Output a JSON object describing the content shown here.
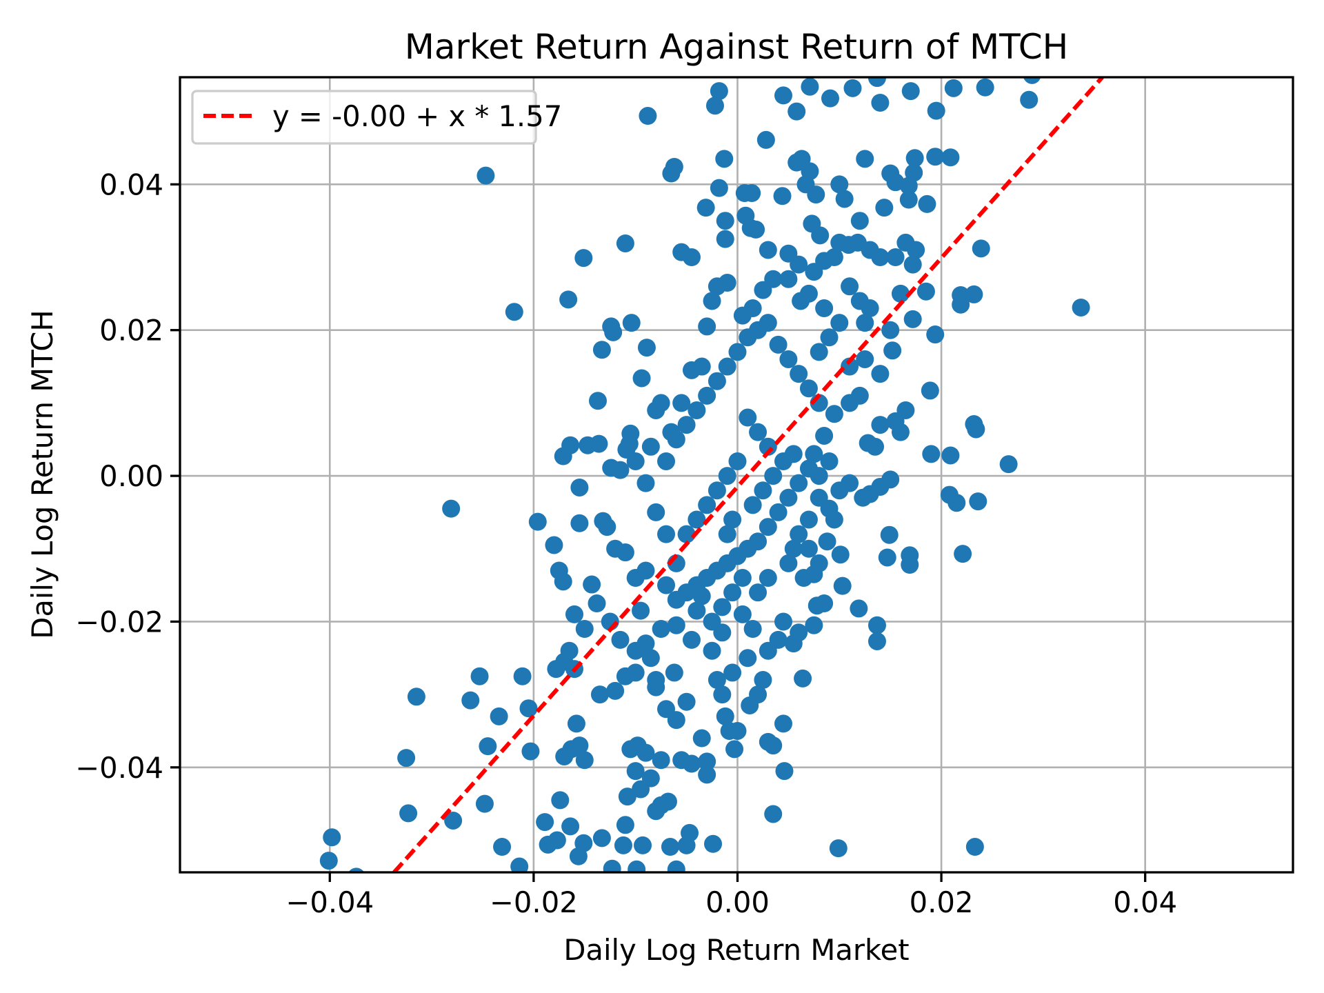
{
  "chart_data": {
    "type": "scatter",
    "title": "Market Return Against Return of MTCH",
    "xlabel": "Daily Log Return Market",
    "ylabel": "Daily Log Return MTCH",
    "xlim": [
      -0.0547,
      0.0545
    ],
    "ylim": [
      -0.0544,
      0.0547
    ],
    "xticks": [
      -0.04,
      -0.02,
      0.0,
      0.02,
      0.04
    ],
    "xtick_labels": [
      "−0.04",
      "−0.02",
      "0.00",
      "0.02",
      "0.04"
    ],
    "yticks": [
      -0.04,
      -0.02,
      0.0,
      0.02,
      0.04
    ],
    "ytick_labels": [
      "−0.04",
      "−0.02",
      "0.00",
      "0.02",
      "0.04"
    ],
    "grid": true,
    "legend_position": "top-left",
    "point_color": "#1f77b4",
    "line_color": "#ff0000",
    "fit_line": {
      "label": "y = -0.00 + x * 1.57",
      "intercept": -0.0015,
      "slope": 1.57,
      "style": "dashed"
    },
    "points": [
      [
        -0.0247,
        0.0412
      ],
      [
        -0.0088,
        0.0494
      ],
      [
        -0.0018,
        0.0528
      ],
      [
        -0.0022,
        0.0508
      ],
      [
        0.0337,
        0.0231
      ],
      [
        0.0266,
        0.0016
      ],
      [
        -0.0219,
        0.0225
      ],
      [
        -0.0281,
        -0.0045
      ],
      [
        -0.0196,
        -0.0063
      ],
      [
        -0.0325,
        -0.0387
      ],
      [
        -0.0315,
        -0.0303
      ],
      [
        -0.0323,
        -0.0463
      ],
      [
        -0.0398,
        -0.0496
      ],
      [
        -0.0401,
        -0.0528
      ],
      [
        -0.0374,
        -0.055
      ],
      [
        -0.0279,
        -0.0473
      ],
      [
        -0.0248,
        -0.045
      ],
      [
        -0.0245,
        -0.0371
      ],
      [
        -0.0262,
        -0.0308
      ],
      [
        -0.0234,
        -0.033
      ],
      [
        -0.0253,
        -0.0275
      ],
      [
        -0.0211,
        -0.0275
      ],
      [
        -0.0205,
        -0.0319
      ],
      [
        -0.0203,
        -0.0378
      ],
      [
        -0.0231,
        -0.0509
      ],
      [
        -0.0214,
        -0.0536
      ],
      [
        0.0099,
        -0.0511
      ],
      [
        0.0233,
        -0.0509
      ],
      [
        0.0236,
        -0.0035
      ],
      [
        0.0215,
        -0.0037
      ],
      [
        0.0208,
        -0.0026
      ],
      [
        0.0221,
        -0.0107
      ],
      [
        0.0234,
        0.0064
      ],
      [
        0.0232,
        0.0071
      ],
      [
        0.019,
        0.003
      ],
      [
        0.0209,
        0.0028
      ],
      [
        0.0189,
        0.0117
      ],
      [
        0.0194,
        0.0194
      ],
      [
        0.0219,
        0.0248
      ],
      [
        0.0219,
        0.0235
      ],
      [
        0.0232,
        0.0249
      ],
      [
        0.0239,
        0.0312
      ],
      [
        0.0185,
        0.0253
      ],
      [
        0.0186,
        0.0373
      ],
      [
        0.0194,
        0.0438
      ],
      [
        0.0209,
        0.0437
      ],
      [
        0.0195,
        0.0501
      ],
      [
        0.0212,
        0.0532
      ],
      [
        0.0243,
        0.0533
      ],
      [
        0.0286,
        0.0516
      ],
      [
        0.0289,
        0.055
      ],
      [
        0.017,
        0.0528
      ],
      [
        0.0137,
        0.0546
      ],
      [
        0.0113,
        0.0532
      ],
      [
        0.0091,
        0.0518
      ],
      [
        0.0071,
        0.0534
      ],
      [
        0.0058,
        0.05
      ],
      [
        0.0045,
        0.0522
      ],
      [
        0.014,
        0.0512
      ],
      [
        0.0028,
        0.0461
      ],
      [
        0.0174,
        0.0436
      ],
      [
        0.0173,
        0.0416
      ],
      [
        0.015,
        0.0415
      ],
      [
        0.0155,
        0.0403
      ],
      [
        0.0168,
        0.0398
      ],
      [
        0.0144,
        0.0368
      ],
      [
        0.0168,
        0.0379
      ],
      [
        0.0147,
        -0.0112
      ],
      [
        0.0169,
        -0.0109
      ],
      [
        0.0169,
        -0.0122
      ],
      [
        0.0149,
        -0.0081
      ],
      [
        0.0137,
        -0.0205
      ],
      [
        0.0137,
        -0.0227
      ],
      [
        0.0119,
        -0.0182
      ],
      [
        0.0103,
        -0.0151
      ],
      [
        0.0101,
        -0.0108
      ],
      [
        0.0046,
        -0.0405
      ],
      [
        0.0035,
        -0.0464
      ],
      [
        0.0064,
        -0.0278
      ],
      [
        -0.0151,
        -0.0504
      ],
      [
        -0.0156,
        -0.0522
      ],
      [
        -0.0133,
        -0.0497
      ],
      [
        -0.011,
        -0.0479
      ],
      [
        -0.0112,
        -0.0507
      ],
      [
        -0.0093,
        -0.0507
      ],
      [
        -0.0066,
        -0.0509
      ],
      [
        -0.005,
        -0.0507
      ],
      [
        -0.0047,
        -0.049
      ],
      [
        -0.0024,
        -0.0505
      ],
      [
        -0.0123,
        -0.0539
      ],
      [
        -0.0099,
        -0.054
      ],
      [
        -0.006,
        -0.054
      ],
      [
        -0.0186,
        -0.0506
      ],
      [
        -0.0189,
        -0.0475
      ],
      [
        -0.0174,
        -0.0445
      ],
      [
        -0.0164,
        -0.0481
      ],
      [
        -0.0177,
        -0.05
      ],
      [
        -0.018,
        -0.0095
      ],
      [
        -0.0175,
        -0.013
      ],
      [
        -0.0171,
        -0.0145
      ],
      [
        -0.0155,
        -0.0016
      ],
      [
        -0.0171,
        0.0027
      ],
      [
        -0.0164,
        0.0042
      ],
      [
        -0.0147,
        0.0042
      ],
      [
        -0.0136,
        0.0044
      ],
      [
        -0.0166,
        0.0242
      ],
      [
        -0.0151,
        0.0299
      ],
      [
        -0.011,
        0.0319
      ],
      [
        -0.0137,
        0.0103
      ],
      [
        -0.0133,
        0.0173
      ],
      [
        -0.0124,
        0.0205
      ],
      [
        -0.0104,
        0.021
      ],
      [
        -0.0122,
        0.0197
      ],
      [
        -0.0089,
        0.0176
      ],
      [
        -0.0055,
        0.0307
      ],
      [
        -0.0045,
        0.03
      ],
      [
        -0.0062,
        0.0424
      ],
      [
        -0.0065,
        0.0415
      ],
      [
        -0.0031,
        0.0368
      ],
      [
        -0.0013,
        0.0435
      ],
      [
        -0.0018,
        0.0395
      ],
      [
        -0.0012,
        0.035
      ],
      [
        -0.0012,
        0.0325
      ],
      [
        0.0008,
        0.0357
      ],
      [
        0.0013,
        0.034
      ],
      [
        0.0018,
        0.0338
      ],
      [
        0.0007,
        0.0388
      ],
      [
        0.0014,
        0.0388
      ],
      [
        0.0044,
        0.0384
      ],
      [
        0.0063,
        0.0435
      ],
      [
        0.0058,
        0.043
      ],
      [
        0.0071,
        0.0418
      ],
      [
        0.0067,
        0.04
      ],
      [
        0.0077,
        0.0386
      ],
      [
        0.0073,
        0.0346
      ],
      [
        0.0081,
        0.033
      ],
      [
        0.0109,
        0.0317
      ],
      [
        0.012,
        0.035
      ],
      [
        -0.0094,
        0.0134
      ],
      [
        -0.0105,
        0.0058
      ],
      [
        -0.0106,
        0.0044
      ],
      [
        -0.0109,
        0.0036
      ],
      [
        -0.0124,
        0.0011
      ],
      [
        -0.0115,
        0.0008
      ],
      [
        -0.0143,
        -0.0149
      ],
      [
        -0.0138,
        -0.0175
      ],
      [
        -0.0132,
        -0.0062
      ],
      [
        -0.0128,
        -0.007
      ],
      [
        -0.0155,
        -0.0065
      ],
      [
        -0.016,
        -0.019
      ],
      [
        -0.015,
        -0.021
      ],
      [
        -0.0165,
        -0.024
      ],
      [
        -0.017,
        -0.0255
      ],
      [
        -0.0178,
        -0.0265
      ],
      [
        -0.016,
        -0.0265
      ],
      [
        -0.0158,
        -0.034
      ],
      [
        -0.0163,
        -0.0375
      ],
      [
        -0.017,
        -0.0385
      ],
      [
        -0.0155,
        -0.037
      ],
      [
        -0.015,
        -0.039
      ],
      [
        -0.0135,
        -0.03
      ],
      [
        -0.012,
        -0.0295
      ],
      [
        -0.011,
        -0.0275
      ],
      [
        -0.01,
        -0.027
      ],
      [
        -0.0125,
        -0.02
      ],
      [
        -0.0115,
        -0.0225
      ],
      [
        -0.01,
        -0.024
      ],
      [
        -0.0095,
        -0.0185
      ],
      [
        -0.0105,
        -0.0375
      ],
      [
        -0.0098,
        -0.037
      ],
      [
        -0.009,
        -0.038
      ],
      [
        -0.01,
        -0.0405
      ],
      [
        -0.0095,
        -0.043
      ],
      [
        -0.0085,
        -0.0415
      ],
      [
        -0.0108,
        -0.044
      ],
      [
        -0.008,
        -0.046
      ],
      [
        -0.0075,
        -0.0452
      ],
      [
        -0.0068,
        -0.0447
      ],
      [
        -0.0075,
        -0.039
      ],
      [
        -0.0055,
        -0.039
      ],
      [
        -0.0045,
        -0.0395
      ],
      [
        -0.003,
        -0.041
      ],
      [
        -0.003,
        -0.0392
      ],
      [
        -0.0035,
        -0.036
      ],
      [
        -0.006,
        -0.0335
      ],
      [
        -0.005,
        -0.031
      ],
      [
        -0.007,
        -0.032
      ],
      [
        -0.008,
        -0.029
      ],
      [
        -0.008,
        -0.028
      ],
      [
        -0.0062,
        -0.027
      ],
      [
        -0.0085,
        -0.025
      ],
      [
        -0.009,
        -0.023
      ],
      [
        -0.0075,
        -0.021
      ],
      [
        -0.006,
        -0.0205
      ],
      [
        -0.0045,
        -0.0225
      ],
      [
        -0.004,
        -0.0185
      ],
      [
        -0.0035,
        -0.0165
      ],
      [
        -0.0025,
        -0.024
      ],
      [
        -0.002,
        -0.028
      ],
      [
        -0.0015,
        -0.03
      ],
      [
        -0.0012,
        -0.033
      ],
      [
        -0.0008,
        -0.035
      ],
      [
        -0.0003,
        -0.0375
      ],
      [
        0.0,
        -0.035
      ],
      [
        0.0012,
        -0.0315
      ],
      [
        0.002,
        -0.03
      ],
      [
        0.0025,
        -0.028
      ],
      [
        0.003,
        -0.024
      ],
      [
        0.004,
        -0.0225
      ],
      [
        0.0045,
        -0.02
      ],
      [
        0.0035,
        -0.037
      ],
      [
        0.003,
        -0.0365
      ],
      [
        0.0045,
        -0.034
      ],
      [
        0.0055,
        -0.023
      ],
      [
        0.006,
        -0.0215
      ],
      [
        0.0075,
        -0.0205
      ],
      [
        0.0078,
        -0.0178
      ],
      [
        0.0085,
        -0.0175
      ],
      [
        0.0065,
        -0.014
      ],
      [
        0.0075,
        -0.0135
      ],
      [
        0.008,
        -0.012
      ],
      [
        0.0088,
        -0.009
      ],
      [
        0.0095,
        -0.006
      ],
      [
        0.009,
        -0.0045
      ],
      [
        0.01,
        -0.002
      ],
      [
        0.011,
        -0.001
      ],
      [
        0.0123,
        -0.003
      ],
      [
        0.013,
        -0.0025
      ],
      [
        0.014,
        -0.0015
      ],
      [
        0.015,
        -0.0005
      ],
      [
        0.0135,
        0.004
      ],
      [
        0.0128,
        0.0045
      ],
      [
        0.014,
        0.007
      ],
      [
        0.0155,
        0.0075
      ],
      [
        0.016,
        0.006
      ],
      [
        0.0165,
        0.009
      ],
      [
        0.012,
        0.011
      ],
      [
        0.011,
        0.01
      ],
      [
        0.0095,
        0.0085
      ],
      [
        0.0085,
        0.0055
      ],
      [
        0.0075,
        0.003
      ],
      [
        0.007,
        0.001
      ],
      [
        0.006,
        -0.001
      ],
      [
        0.005,
        -0.003
      ],
      [
        0.004,
        -0.005
      ],
      [
        0.003,
        -0.007
      ],
      [
        0.002,
        -0.009
      ],
      [
        0.001,
        -0.01
      ],
      [
        0.0,
        -0.011
      ],
      [
        -0.001,
        -0.012
      ],
      [
        -0.002,
        -0.013
      ],
      [
        -0.003,
        -0.014
      ],
      [
        -0.004,
        -0.015
      ],
      [
        -0.005,
        -0.016
      ],
      [
        -0.006,
        -0.012
      ],
      [
        -0.007,
        -0.008
      ],
      [
        -0.008,
        -0.005
      ],
      [
        -0.009,
        -0.001
      ],
      [
        -0.007,
        0.002
      ],
      [
        -0.006,
        0.005
      ],
      [
        -0.005,
        0.007
      ],
      [
        -0.004,
        0.009
      ],
      [
        -0.003,
        0.011
      ],
      [
        -0.002,
        0.013
      ],
      [
        -0.001,
        0.015
      ],
      [
        0.0,
        0.017
      ],
      [
        0.001,
        0.019
      ],
      [
        0.002,
        0.02
      ],
      [
        0.003,
        0.021
      ],
      [
        0.004,
        0.018
      ],
      [
        0.005,
        0.016
      ],
      [
        0.006,
        0.014
      ],
      [
        0.007,
        0.012
      ],
      [
        0.008,
        0.01
      ],
      [
        0.001,
        0.008
      ],
      [
        0.002,
        0.006
      ],
      [
        0.003,
        0.004
      ],
      [
        0.0,
        0.002
      ],
      [
        -0.001,
        0.0
      ],
      [
        -0.002,
        -0.002
      ],
      [
        -0.003,
        -0.004
      ],
      [
        -0.004,
        -0.006
      ],
      [
        -0.005,
        -0.008
      ],
      [
        0.0015,
        -0.004
      ],
      [
        0.0025,
        -0.002
      ],
      [
        0.0035,
        0.0
      ],
      [
        0.0045,
        0.002
      ],
      [
        0.0055,
        0.003
      ],
      [
        -0.0025,
        0.024
      ],
      [
        -0.002,
        0.026
      ],
      [
        -0.001,
        0.0265
      ],
      [
        0.0005,
        0.022
      ],
      [
        0.0015,
        0.023
      ],
      [
        0.0025,
        0.0255
      ],
      [
        0.005,
        0.027
      ],
      [
        0.006,
        0.029
      ],
      [
        0.0075,
        0.028
      ],
      [
        0.0085,
        0.0295
      ],
      [
        0.0095,
        0.03
      ],
      [
        0.011,
        0.026
      ],
      [
        0.012,
        0.024
      ],
      [
        0.013,
        0.023
      ],
      [
        0.0125,
        0.021
      ],
      [
        0.01,
        0.021
      ],
      [
        0.009,
        0.019
      ],
      [
        0.008,
        0.017
      ],
      [
        0.011,
        0.015
      ],
      [
        0.0125,
        0.016
      ],
      [
        0.014,
        0.014
      ],
      [
        0.015,
        0.02
      ],
      [
        0.0152,
        0.0172
      ],
      [
        0.016,
        0.025
      ],
      [
        0.0155,
        0.03
      ],
      [
        0.0165,
        0.032
      ],
      [
        0.0175,
        0.031
      ],
      [
        0.0172,
        0.029
      ],
      [
        0.014,
        0.03
      ],
      [
        0.013,
        0.031
      ],
      [
        0.0118,
        0.032
      ],
      [
        0.0172,
        0.0215
      ],
      [
        0.01,
        0.032
      ],
      [
        -0.0035,
        0.015
      ],
      [
        -0.0045,
        0.0145
      ],
      [
        -0.0055,
        0.01
      ],
      [
        -0.0075,
        0.01
      ],
      [
        -0.008,
        0.009
      ],
      [
        -0.0065,
        0.006
      ],
      [
        -0.0085,
        0.004
      ],
      [
        -0.01,
        0.002
      ],
      [
        -0.011,
        -0.0105
      ],
      [
        -0.012,
        -0.01
      ],
      [
        -0.01,
        -0.014
      ],
      [
        -0.009,
        -0.013
      ],
      [
        -0.006,
        -0.017
      ],
      [
        -0.007,
        -0.015
      ],
      [
        -0.0025,
        -0.02
      ],
      [
        -0.0015,
        -0.0215
      ],
      [
        0.0005,
        -0.019
      ],
      [
        0.0015,
        -0.021
      ],
      [
        0.002,
        -0.016
      ],
      [
        0.003,
        -0.014
      ],
      [
        0.005,
        -0.012
      ],
      [
        0.0055,
        -0.01
      ],
      [
        0.006,
        -0.008
      ],
      [
        0.007,
        -0.006
      ],
      [
        0.008,
        -0.003
      ],
      [
        0.007,
        -0.01
      ],
      [
        -0.0005,
        -0.006
      ],
      [
        -0.001,
        -0.008
      ],
      [
        0.0005,
        -0.014
      ],
      [
        -0.0005,
        -0.016
      ],
      [
        -0.0015,
        -0.018
      ],
      [
        0.001,
        -0.025
      ],
      [
        -0.0005,
        -0.027
      ],
      [
        0.008,
        0.0
      ],
      [
        0.009,
        0.002
      ],
      [
        0.0085,
        0.023
      ],
      [
        0.007,
        0.025
      ],
      [
        0.0035,
        0.027
      ],
      [
        0.003,
        0.031
      ],
      [
        0.005,
        0.0305
      ],
      [
        0.0062,
        0.024
      ],
      [
        -0.003,
        0.0205
      ],
      [
        0.0105,
        0.038
      ],
      [
        0.01,
        0.04
      ],
      [
        0.0125,
        0.0435
      ]
    ]
  }
}
